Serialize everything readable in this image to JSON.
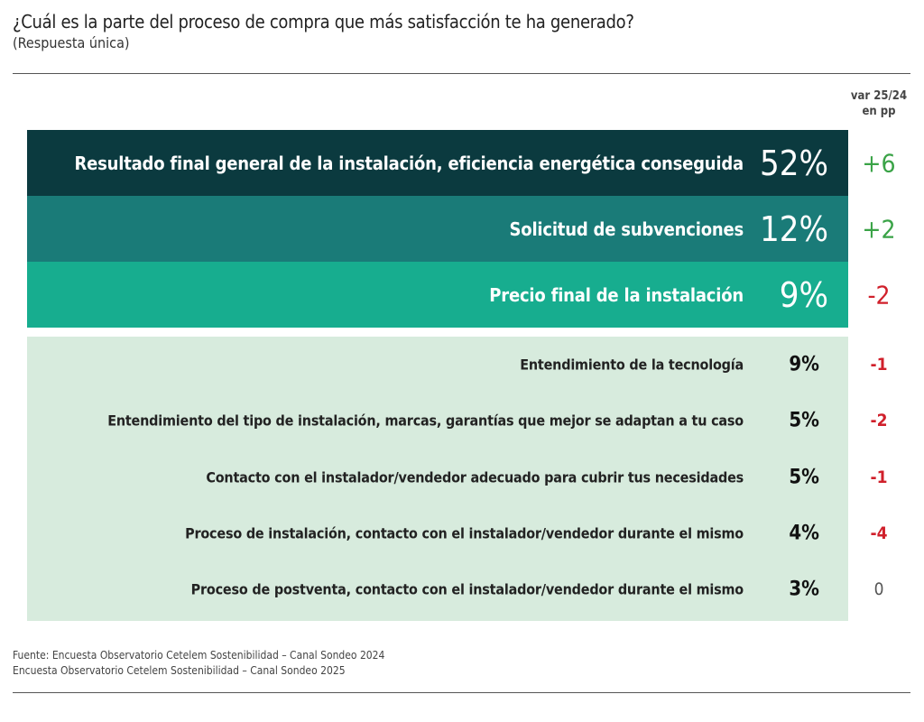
{
  "header": {
    "title": "¿Cuál es la parte del proceso de compra que más satisfacción te ha generado?",
    "subtitle": "(Respuesta única)"
  },
  "column_header": [
    "var 25/24",
    "en pp"
  ],
  "highlighted_rows": [
    {
      "label": "Resultado final general de la instalación, eficiencia energética conseguida",
      "value": "52%",
      "change": "+6"
    },
    {
      "label": "Solicitud de subvenciones",
      "value": "12%",
      "change": "+2"
    },
    {
      "label": "Precio final de la instalación",
      "value": "9%",
      "change": "-2"
    }
  ],
  "other_rows": [
    {
      "label": "Entendimiento de la tecnología",
      "value": "9%",
      "change": "-1"
    },
    {
      "label": "Entendimiento del tipo de instalación, marcas, garantías que mejor se adaptan a tu caso",
      "value": "5%",
      "change": "-2"
    },
    {
      "label": "Contacto con el instalador/vendedor adecuado para cubrir tus necesidades",
      "value": "5%",
      "change": "-1"
    },
    {
      "label": "Proceso de instalación, contacto con el instalador/vendedor durante el mismo",
      "value": "4%",
      "change": "-4"
    },
    {
      "label": "Proceso de postventa, contacto con el instalador/vendedor durante el mismo",
      "value": "3%",
      "change": "0"
    }
  ],
  "footer": [
    "Fuente: Encuesta Observatorio Cetelem Sostenibilidad – Canal Sondeo 2024",
    "Encuesta Observatorio Cetelem Sostenibilidad – Canal Sondeo 2025"
  ]
}
